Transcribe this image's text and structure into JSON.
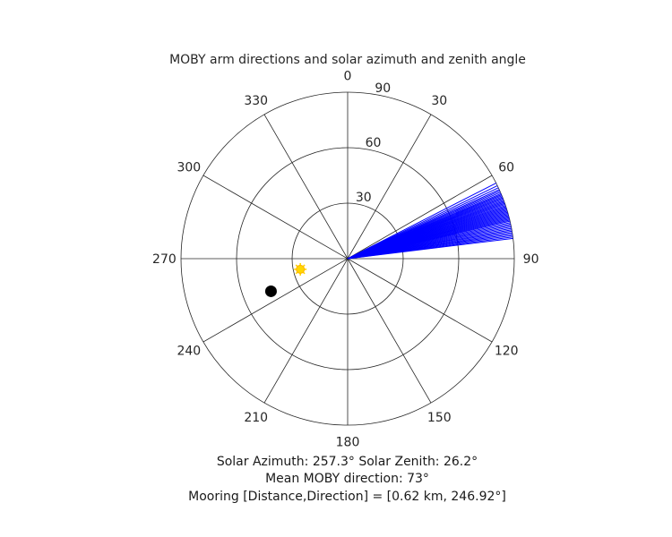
{
  "chart_data": {
    "type": "polar",
    "title": "MOBY arm directions and solar azimuth and zenith angle",
    "angular_axis": {
      "zero_location": "top",
      "direction": "clockwise",
      "ticks": [
        0,
        30,
        60,
        90,
        120,
        150,
        180,
        210,
        240,
        270,
        300,
        330
      ],
      "tick_labels": [
        "0",
        "30",
        "60",
        "90",
        "120",
        "150",
        "180",
        "210",
        "240",
        "270",
        "300",
        "330"
      ]
    },
    "radial_axis": {
      "ticks": [
        30,
        60,
        90
      ],
      "tick_labels": [
        "30",
        "60",
        "90"
      ],
      "rlim": [
        0,
        90
      ],
      "label_angle": 10
    },
    "grid": true,
    "series": [
      {
        "kind": "lines",
        "color": "#0000ff",
        "radius": 90,
        "angles": [
          63.0,
          64.0,
          64.8,
          65.5,
          66.0,
          66.5,
          67.0,
          67.4,
          67.8,
          68.2,
          68.6,
          69.0,
          69.4,
          69.8,
          70.2,
          70.6,
          71.0,
          71.4,
          71.8,
          72.2,
          72.6,
          73.0,
          73.4,
          73.8,
          74.2,
          74.6,
          75.0,
          75.4,
          75.8,
          76.2,
          76.6,
          77.0,
          77.5,
          78.0,
          78.5,
          79.0,
          79.5,
          80.0,
          80.5,
          81.0,
          81.5,
          82.0,
          82.5,
          83.0
        ]
      },
      {
        "kind": "point",
        "label": "sun",
        "marker": "sun",
        "color": "#ffd700",
        "angle": 257.3,
        "radius": 26.2
      },
      {
        "kind": "point",
        "label": "mooring",
        "marker": "filled-circle",
        "color": "#000000",
        "angle": 246.92,
        "radius": 45
      }
    ]
  },
  "captions": {
    "line1": "Solar Azimuth: 257.3°   Solar Zenith: 26.2°",
    "line2": "Mean MOBY direction: 73°",
    "line3": "Mooring [Distance,Direction] = [0.62 km, 246.92°]"
  }
}
